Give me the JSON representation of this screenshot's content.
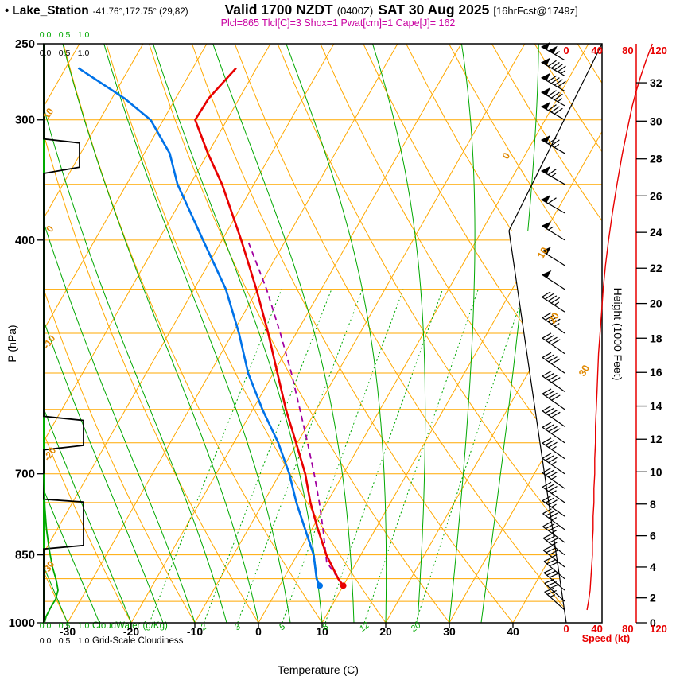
{
  "header": {
    "bullet": "•",
    "station": "Lake_Station",
    "coords": "-41.76°,172.75° (29,82)",
    "valid": "Valid 1700 NZDT",
    "valid_zulu": "(0400Z)",
    "valid_date": "SAT 30 Aug 2025",
    "forecast_info": "[16hrFcst@1749z]",
    "indices": "Plcl=865 Tlcl[C]=3 Shox=1 Pwat[cm]=1 Cape[J]= 162"
  },
  "axes": {
    "pressure": {
      "label": "P (hPa)",
      "ticks": [
        250,
        300,
        400,
        700,
        850,
        1000
      ]
    },
    "temperature": {
      "label": "Temperature (C)",
      "ticks": [
        -30,
        -20,
        -10,
        0,
        10,
        20,
        30,
        40
      ]
    },
    "height": {
      "label": "Height (1000 Feet)",
      "ticks": [
        0,
        2,
        4,
        6,
        8,
        10,
        12,
        14,
        16,
        18,
        20,
        22,
        24,
        26,
        28,
        30,
        32
      ]
    },
    "speed": {
      "label": "Speed (kt)",
      "ticks": [
        0,
        40,
        80,
        120
      ]
    },
    "cloud_water": {
      "label": "CloudWater (g/Kg)",
      "scale": [
        "0.0",
        "0.5",
        "1.0"
      ]
    },
    "cloudiness": {
      "label": "Grid-Scale Cloudiness",
      "scale": [
        "0.0",
        "0.5",
        "1.0"
      ]
    },
    "isotherm_labels": [
      0,
      10,
      20,
      30
    ],
    "dry_adiabat_labels": [
      10,
      0,
      -10,
      -20,
      -30
    ],
    "mixing_ratio_labels": [
      2,
      3,
      5,
      8,
      12,
      20
    ]
  },
  "chart_data": {
    "type": "skewt-log-p",
    "pressure_range_hpa": [
      250,
      1000
    ],
    "isobar_step_hpa": 50,
    "isotherm_step_c": 10,
    "mixing_ratio_lines_g_kg": [
      1,
      2,
      3,
      5,
      8,
      12,
      20
    ],
    "surface_pressure_hpa": 915,
    "surface_temp_c": 10,
    "surface_dewpoint_c": 6.3,
    "temperature_profile": {
      "pressure": [
        915,
        900,
        850,
        800,
        750,
        700,
        650,
        600,
        550,
        500,
        450,
        400,
        350,
        325,
        300,
        285,
        265
      ],
      "temp_c": [
        10,
        8.6,
        4.6,
        1.0,
        -2.6,
        -6.0,
        -10.2,
        -14.8,
        -19.4,
        -24.4,
        -30.2,
        -37.0,
        -45.0,
        -50.0,
        -55.0,
        -54.8,
        -53.2
      ]
    },
    "dewpoint_profile": {
      "pressure": [
        915,
        900,
        850,
        800,
        750,
        700,
        650,
        600,
        550,
        500,
        450,
        400,
        350,
        325,
        300,
        285,
        265
      ],
      "temp_c": [
        6.3,
        5.2,
        2.6,
        -1.0,
        -4.8,
        -8.5,
        -13.0,
        -18.5,
        -24.0,
        -29.0,
        -35.0,
        -43.0,
        -52.0,
        -56.0,
        -62.0,
        -68.0,
        -78.0
      ]
    },
    "parcel_profile": {
      "pressure": [
        915,
        865,
        800,
        750,
        700,
        650,
        600,
        550,
        500,
        450,
        400
      ],
      "temp_c": [
        10,
        5.3,
        1.8,
        -1.2,
        -4.6,
        -8.4,
        -12.6,
        -17.2,
        -22.5,
        -28.6,
        -36.0
      ]
    },
    "wind_profile": {
      "pressure": [
        970,
        950,
        925,
        900,
        875,
        850,
        825,
        800,
        775,
        750,
        725,
        700,
        675,
        650,
        625,
        600,
        575,
        550,
        525,
        500,
        475,
        450,
        425,
        400,
        375,
        350,
        325,
        300,
        290,
        280,
        270,
        260,
        250
      ],
      "speed_kt": [
        27,
        29,
        31,
        32,
        33,
        34,
        34,
        35,
        35,
        36,
        36,
        37,
        37,
        38,
        38,
        39,
        40,
        41,
        42,
        44,
        46,
        48,
        51,
        55,
        60,
        66,
        73,
        82,
        86,
        91,
        97,
        104,
        112
      ],
      "direction_deg": [
        312,
        312,
        310,
        310,
        308,
        308,
        306,
        306,
        305,
        305,
        305,
        305,
        305,
        305,
        305,
        305,
        305,
        305,
        305,
        305,
        303,
        303,
        302,
        302,
        300,
        300,
        300,
        300,
        300,
        300,
        300,
        300,
        300
      ]
    },
    "cloudiness_profile": {
      "pressure": [
        250,
        314,
        317,
        336,
        341,
        610,
        616,
        654,
        661,
        744,
        749,
        831,
        838,
        1000
      ],
      "fraction": [
        0,
        0,
        0.9,
        0.9,
        0,
        0,
        1,
        1,
        0,
        0,
        1,
        1,
        0,
        0
      ]
    },
    "cloud_water_profile": {
      "pressure": [
        700,
        760,
        800,
        840,
        875,
        905,
        925,
        945,
        965,
        985,
        1000
      ],
      "g_kg": [
        0,
        0.03,
        0.07,
        0.14,
        0.22,
        0.32,
        0.36,
        0.3,
        0.17,
        0.06,
        0.02
      ]
    },
    "colors": {
      "temperature": "#e80000",
      "dewpoint": "#0072e8",
      "parcel": "#a000a0",
      "background_lines": "#ffa800",
      "moist_lines": "#00a800",
      "wind": "#000000",
      "speed_axis": "#e80000",
      "indices_text": "#c800a0"
    }
  }
}
